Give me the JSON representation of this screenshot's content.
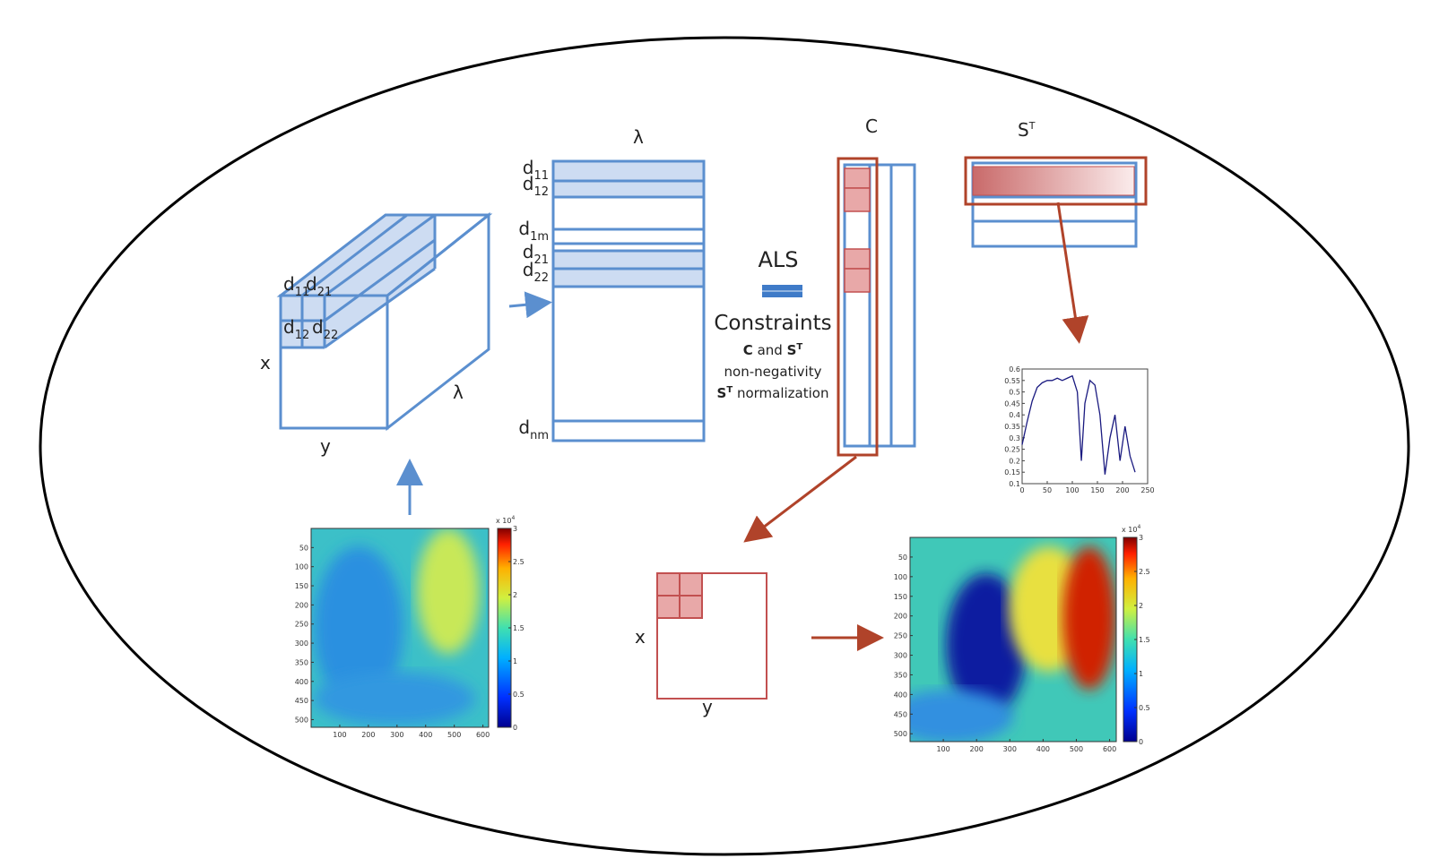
{
  "cube": {
    "cells": [
      {
        "d": "d",
        "sub": "11"
      },
      {
        "d": "d",
        "sub": "21"
      },
      {
        "d": "d",
        "sub": "12"
      },
      {
        "d": "d",
        "sub": "22"
      }
    ],
    "x": "x",
    "y": "y",
    "lambda": "λ"
  },
  "matrix": {
    "lambda": "λ",
    "rows": [
      {
        "d": "d",
        "sub": "11"
      },
      {
        "d": "d",
        "sub": "12"
      },
      {
        "d": "d",
        "sub": "1m"
      },
      {
        "d": "d",
        "sub": "21"
      },
      {
        "d": "d",
        "sub": "22"
      },
      {
        "d": "d",
        "sub": "nm"
      }
    ]
  },
  "als": {
    "title": "ALS",
    "constraints": "Constraints",
    "line1": {
      "a": "C",
      "and": " and ",
      "b": "S",
      "sup": "T"
    },
    "line2": "non-negativity",
    "line3": {
      "b": "S",
      "sup": "T",
      "rest": " normalization"
    }
  },
  "c_label": "C",
  "st_label": {
    "base": "S",
    "sup": "T"
  },
  "square": {
    "x": "x",
    "y": "y"
  },
  "spectrum": {
    "type": "line",
    "x": [
      0,
      10,
      20,
      30,
      40,
      50,
      60,
      70,
      80,
      90,
      100,
      110,
      118,
      125,
      135,
      145,
      155,
      165,
      175,
      185,
      195,
      205,
      215,
      225
    ],
    "values": [
      0.27,
      0.37,
      0.46,
      0.52,
      0.54,
      0.55,
      0.55,
      0.56,
      0.55,
      0.56,
      0.57,
      0.5,
      0.2,
      0.45,
      0.55,
      0.53,
      0.4,
      0.14,
      0.3,
      0.4,
      0.2,
      0.35,
      0.22,
      0.15
    ],
    "color": "#1a1a80",
    "xlim": [
      0,
      250
    ],
    "ylim": [
      0.1,
      0.6
    ],
    "xticks": [
      0,
      50,
      100,
      150,
      200,
      250
    ],
    "yticks": [
      0.1,
      0.15,
      0.2,
      0.25,
      0.3,
      0.35,
      0.4,
      0.45,
      0.5,
      0.55,
      0.6
    ]
  },
  "maps": [
    {
      "xlim": [
        0,
        620
      ],
      "ylim": [
        0,
        520
      ],
      "xticks": [
        100,
        200,
        300,
        400,
        500,
        600
      ],
      "yticks": [
        50,
        100,
        150,
        200,
        250,
        300,
        350,
        400,
        450,
        500
      ],
      "clim": [
        0,
        3
      ],
      "cticks": [
        0,
        0.5,
        1,
        1.5,
        2,
        2.5,
        3
      ],
      "cbar_label": {
        "base": "x 10",
        "sup": "4"
      }
    },
    {
      "xlim": [
        0,
        620
      ],
      "ylim": [
        0,
        520
      ],
      "xticks": [
        100,
        200,
        300,
        400,
        500,
        600
      ],
      "yticks": [
        50,
        100,
        150,
        200,
        250,
        300,
        350,
        400,
        450,
        500
      ],
      "clim": [
        0,
        3
      ],
      "cticks": [
        0,
        0.5,
        1,
        1.5,
        2,
        2.5,
        3
      ],
      "cbar_label": {
        "base": "x 10",
        "sup": "4"
      }
    }
  ]
}
